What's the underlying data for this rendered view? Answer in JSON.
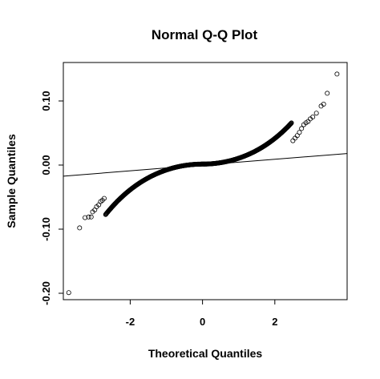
{
  "chart_data": {
    "type": "scatter",
    "title": "Normal Q-Q Plot",
    "xlabel": "Theoretical Quantiles",
    "ylabel": "Sample Quantiles",
    "xlim": [
      -3.85,
      4.0
    ],
    "ylim": [
      -0.21,
      0.16
    ],
    "x_ticks": [
      -2,
      0,
      2
    ],
    "x_tick_labels": [
      "-2",
      "0",
      "2"
    ],
    "y_ticks": [
      -0.2,
      -0.1,
      0.0,
      0.1
    ],
    "y_tick_labels": [
      "-0.20",
      "-0.10",
      "0.00",
      "0.10"
    ],
    "grid": false,
    "reference_line": {
      "intercept": 0.0,
      "slope": 0.0045
    },
    "points": [
      [
        -3.7,
        -0.199
      ],
      [
        -3.4,
        -0.098
      ],
      [
        -3.25,
        -0.082
      ],
      [
        -3.15,
        -0.081
      ],
      [
        -3.08,
        -0.081
      ],
      [
        -3.04,
        -0.073
      ],
      [
        -2.98,
        -0.07
      ],
      [
        -2.93,
        -0.065
      ],
      [
        -2.87,
        -0.062
      ],
      [
        -2.82,
        -0.057
      ],
      [
        -2.77,
        -0.055
      ],
      [
        -2.72,
        -0.052
      ],
      [
        2.5,
        0.038
      ],
      [
        2.56,
        0.042
      ],
      [
        2.62,
        0.046
      ],
      [
        2.68,
        0.051
      ],
      [
        2.74,
        0.057
      ],
      [
        2.8,
        0.063
      ],
      [
        2.86,
        0.066
      ],
      [
        2.92,
        0.068
      ],
      [
        2.98,
        0.072
      ],
      [
        3.05,
        0.075
      ],
      [
        3.15,
        0.081
      ],
      [
        3.28,
        0.092
      ],
      [
        3.35,
        0.095
      ],
      [
        3.45,
        0.112
      ],
      [
        3.72,
        0.142
      ]
    ],
    "dense_segment": {
      "from": -2.68,
      "to": 2.46,
      "count": 470,
      "scale": 0.046,
      "steepness": 2.35
    }
  }
}
